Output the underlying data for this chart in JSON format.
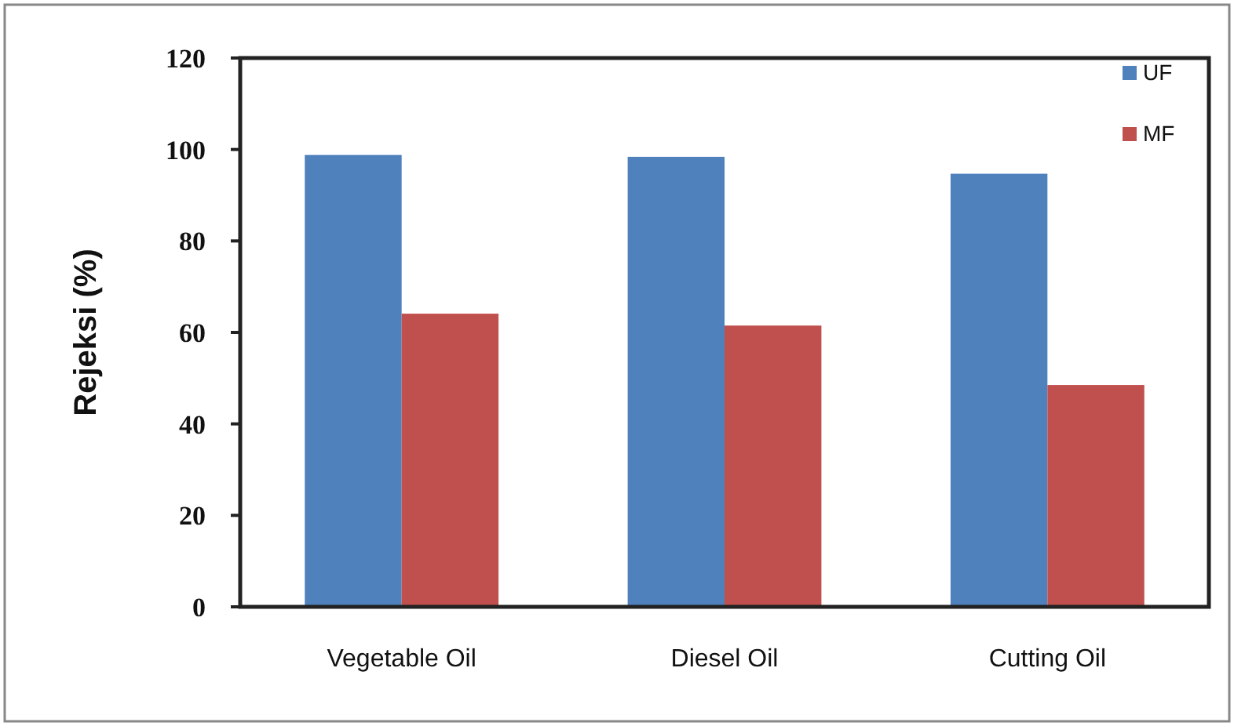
{
  "chart_data": {
    "type": "bar",
    "ylabel": "Rejeksi (%)",
    "categories": [
      "Vegetable Oil",
      "Diesel Oil",
      "Cutting Oil"
    ],
    "series": [
      {
        "name": "UF",
        "color": "#4f81bd",
        "values": [
          98.8,
          98.4,
          94.7
        ]
      },
      {
        "name": "MF",
        "color": "#c0504d",
        "values": [
          64.1,
          61.5,
          48.5
        ]
      }
    ],
    "ylim": [
      0,
      120
    ],
    "yticks": [
      0,
      20,
      40,
      60,
      80,
      100,
      120
    ],
    "grid": false,
    "legend": "top right"
  }
}
